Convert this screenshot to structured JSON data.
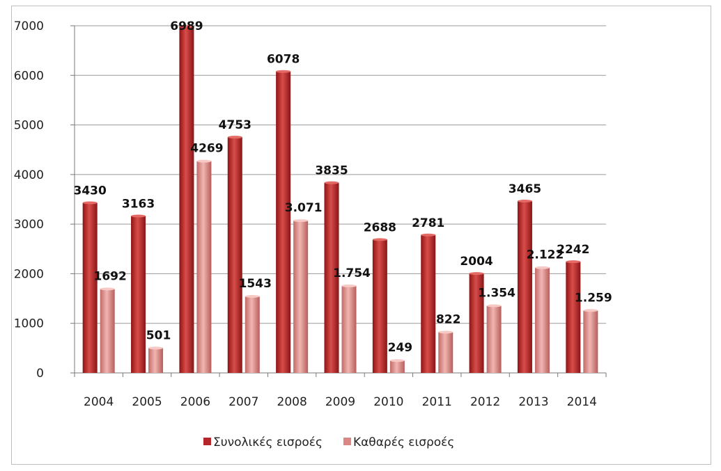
{
  "chart_data": {
    "type": "bar",
    "categories": [
      "2004",
      "2005",
      "2006",
      "2007",
      "2008",
      "2009",
      "2010",
      "2011",
      "2012",
      "2013",
      "2014"
    ],
    "series": [
      {
        "name": "Συνολικές εισροές",
        "values": [
          3430,
          3163,
          6989,
          4753,
          6078,
          3835,
          2688,
          2781,
          2004,
          3465,
          2242
        ],
        "labels": [
          "3430",
          "3163",
          "6989",
          "4753",
          "6078",
          "3835",
          "2688",
          "2781",
          "2004",
          "3465",
          "2242"
        ],
        "color": "#b3272a"
      },
      {
        "name": "Καθαρές εισροές",
        "values": [
          1692,
          501,
          4269,
          1543,
          3071,
          1754,
          249,
          822,
          1354,
          2122,
          1259
        ],
        "labels": [
          "1692",
          "501",
          "4269",
          "1543",
          "3.071",
          "1.754",
          "249",
          "822",
          "1.354",
          "2.122",
          "1.259"
        ],
        "color": "#d98784"
      }
    ],
    "ylim": [
      0,
      7000
    ],
    "yticks": [
      "0",
      "1000",
      "2000",
      "3000",
      "4000",
      "5000",
      "6000",
      "7000"
    ],
    "grid": true,
    "legend_position": "bottom"
  }
}
